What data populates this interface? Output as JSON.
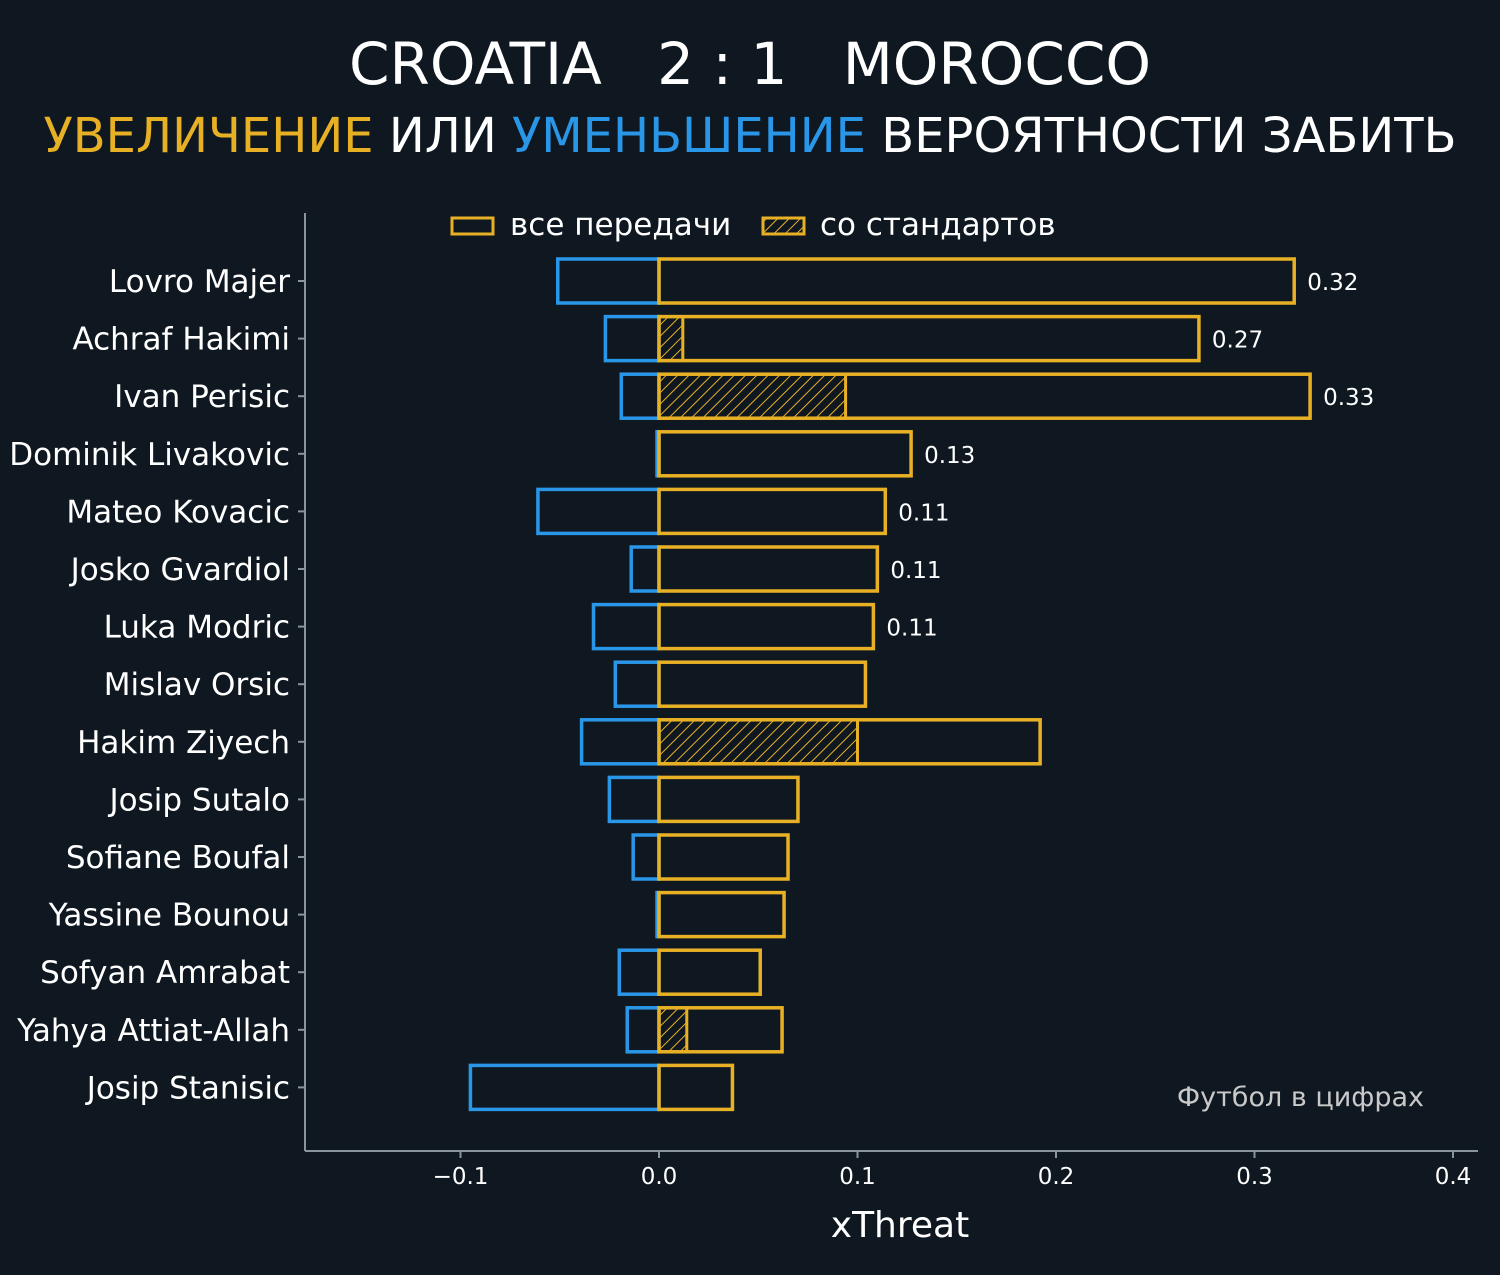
{
  "title": {
    "home": "CROATIA",
    "score": "2 : 1",
    "away": "MOROCCO"
  },
  "subtitle": {
    "increase": "УВЕЛИЧЕНИЕ",
    "or": "ИЛИ",
    "decrease": "УМЕНЬШЕНИЕ",
    "rest": "ВЕРОЯТНОСТИ ЗАБИТЬ"
  },
  "colors": {
    "background": "#0f1821",
    "positive": "#e8b125",
    "negative": "#2a96e8",
    "text": "#ffffff",
    "axis": "#8a949c",
    "watermark": "#c9c9c9"
  },
  "legend": {
    "all_passes": "все передачи",
    "set_pieces": "со стандартов"
  },
  "watermark": "Футбол в цифрах",
  "chart_data": {
    "type": "bar",
    "orientation": "horizontal",
    "xlabel": "xThreat",
    "xlim": [
      -0.18,
      0.41
    ],
    "xticks": [
      -0.1,
      0.0,
      0.1,
      0.2,
      0.3,
      0.4
    ],
    "xtick_labels": [
      "−0.1",
      "0.0",
      "0.1",
      "0.2",
      "0.3",
      "0.4"
    ],
    "legend_position": "top-center",
    "grid": false,
    "categories": [
      "Lovro Majer",
      "Achraf Hakimi",
      "Ivan Perisic",
      "Dominik Livakovic",
      "Mateo Kovacic",
      "Josko Gvardiol",
      "Luka Modric",
      "Mislav Orsic",
      "Hakim Ziyech",
      "Josip Sutalo",
      "Sofiane Boufal",
      "Yassine Bounou",
      "Sofyan Amrabat",
      "Yahya Attiat-Allah",
      "Josip Stanisic"
    ],
    "series": [
      {
        "name": "все передачи",
        "role": "positive",
        "values": [
          0.32,
          0.272,
          0.328,
          0.127,
          0.114,
          0.11,
          0.108,
          0.104,
          0.192,
          0.07,
          0.065,
          0.063,
          0.051,
          0.062,
          0.037
        ]
      },
      {
        "name": "со стандартов",
        "role": "positive-hatched",
        "values": [
          0,
          0.012,
          0.094,
          0,
          0,
          0,
          0,
          0,
          0.1,
          0,
          0,
          0,
          0,
          0.014,
          0
        ]
      },
      {
        "role": "negative",
        "values": [
          -0.051,
          -0.027,
          -0.019,
          -0.001,
          -0.061,
          -0.014,
          -0.033,
          -0.022,
          -0.039,
          -0.025,
          -0.013,
          -0.001,
          -0.02,
          -0.016,
          -0.095
        ]
      }
    ],
    "data_labels": [
      "0.32",
      "0.27",
      "0.33",
      "0.13",
      "0.11",
      "0.11",
      "0.11",
      "",
      "",
      "",
      "",
      "",
      "",
      "",
      ""
    ]
  }
}
